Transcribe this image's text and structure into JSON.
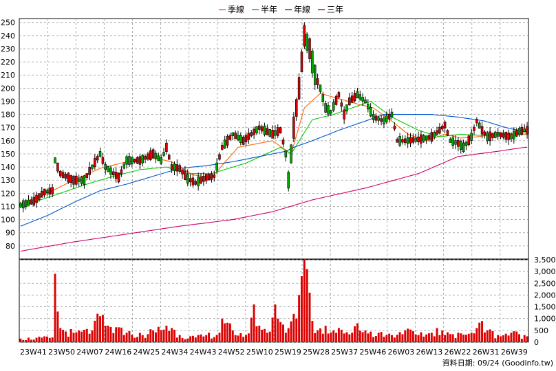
{
  "chart_data": [
    {
      "type": "candlestick",
      "legend": [
        {
          "label": "季線",
          "color": "#ff6600"
        },
        {
          "label": "半年",
          "color": "#00cc00"
        },
        {
          "label": "年線",
          "color": "#0055cc"
        },
        {
          "label": "三年",
          "color": "#cc0066"
        }
      ],
      "ylim": [
        70,
        253
      ],
      "yticks": [
        80,
        90,
        100,
        110,
        120,
        130,
        140,
        150,
        160,
        170,
        180,
        190,
        200,
        210,
        220,
        230,
        240,
        250
      ],
      "xticks": [
        "23W41",
        "23W50",
        "24W07",
        "24W16",
        "24W25",
        "24W34",
        "24W43",
        "24W52",
        "25W10",
        "25W19",
        "25W28",
        "25W37",
        "25W46",
        "26W03",
        "26W13",
        "26W22",
        "26W31",
        "26W39"
      ],
      "price_keypoints": [
        [
          0,
          111
        ],
        [
          5,
          114
        ],
        [
          9,
          121
        ],
        [
          12,
          122
        ],
        [
          13,
          145
        ],
        [
          15,
          135
        ],
        [
          20,
          130
        ],
        [
          24,
          130
        ],
        [
          26,
          137
        ],
        [
          30,
          150
        ],
        [
          32,
          140
        ],
        [
          37,
          132
        ],
        [
          40,
          145
        ],
        [
          45,
          145
        ],
        [
          50,
          150
        ],
        [
          53,
          145
        ],
        [
          55,
          155
        ],
        [
          57,
          140
        ],
        [
          60,
          139
        ],
        [
          63,
          131
        ],
        [
          66,
          128
        ],
        [
          70,
          132
        ],
        [
          73,
          133
        ],
        [
          76,
          155
        ],
        [
          80,
          165
        ],
        [
          84,
          160
        ],
        [
          87,
          165
        ],
        [
          90,
          170
        ],
        [
          95,
          165
        ],
        [
          98,
          168
        ],
        [
          100,
          150
        ],
        [
          101,
          130
        ],
        [
          103,
          170
        ],
        [
          105,
          200
        ],
        [
          107,
          240
        ],
        [
          109,
          230
        ],
        [
          111,
          210
        ],
        [
          113,
          200
        ],
        [
          115,
          185
        ],
        [
          117,
          182
        ],
        [
          120,
          195
        ],
        [
          122,
          180
        ],
        [
          124,
          190
        ],
        [
          127,
          195
        ],
        [
          130,
          190
        ],
        [
          133,
          178
        ],
        [
          137,
          175
        ],
        [
          140,
          180
        ],
        [
          142,
          160
        ],
        [
          145,
          160
        ],
        [
          150,
          161
        ],
        [
          155,
          163
        ],
        [
          158,
          168
        ],
        [
          160,
          172
        ],
        [
          162,
          160
        ],
        [
          165,
          158
        ],
        [
          167,
          155
        ],
        [
          170,
          163
        ],
        [
          172,
          175
        ],
        [
          174,
          168
        ],
        [
          176,
          163
        ],
        [
          180,
          165
        ],
        [
          185,
          163
        ],
        [
          188,
          167
        ],
        [
          190,
          168
        ]
      ],
      "ma_quarter": [
        [
          0,
          111
        ],
        [
          10,
          120
        ],
        [
          20,
          130
        ],
        [
          30,
          139
        ],
        [
          40,
          144
        ],
        [
          50,
          147
        ],
        [
          57,
          144
        ],
        [
          65,
          134
        ],
        [
          72,
          132
        ],
        [
          82,
          155
        ],
        [
          95,
          160
        ],
        [
          102,
          150
        ],
        [
          107,
          185
        ],
        [
          113,
          196
        ],
        [
          120,
          192
        ],
        [
          127,
          188
        ],
        [
          133,
          185
        ],
        [
          140,
          175
        ],
        [
          146,
          165
        ],
        [
          153,
          160
        ],
        [
          160,
          165
        ],
        [
          166,
          162
        ],
        [
          172,
          163
        ],
        [
          180,
          165
        ],
        [
          190,
          165
        ]
      ],
      "ma_halfyear": [
        [
          0,
          110
        ],
        [
          12,
          118
        ],
        [
          25,
          127
        ],
        [
          35,
          133
        ],
        [
          45,
          138
        ],
        [
          55,
          140
        ],
        [
          63,
          135
        ],
        [
          72,
          135
        ],
        [
          85,
          143
        ],
        [
          98,
          155
        ],
        [
          102,
          150
        ],
        [
          110,
          176
        ],
        [
          118,
          180
        ],
        [
          125,
          185
        ],
        [
          132,
          190
        ],
        [
          140,
          178
        ],
        [
          150,
          168
        ],
        [
          158,
          163
        ],
        [
          166,
          165
        ],
        [
          174,
          164
        ],
        [
          182,
          165
        ],
        [
          190,
          166
        ]
      ],
      "ma_year": [
        [
          0,
          95
        ],
        [
          10,
          103
        ],
        [
          20,
          113
        ],
        [
          30,
          122
        ],
        [
          40,
          127
        ],
        [
          50,
          133
        ],
        [
          60,
          139
        ],
        [
          70,
          141
        ],
        [
          80,
          144
        ],
        [
          90,
          148
        ],
        [
          100,
          152
        ],
        [
          103,
          155
        ],
        [
          110,
          160
        ],
        [
          120,
          168
        ],
        [
          130,
          175
        ],
        [
          137,
          180
        ],
        [
          145,
          180
        ],
        [
          155,
          180
        ],
        [
          165,
          178
        ],
        [
          175,
          175
        ],
        [
          183,
          170
        ],
        [
          190,
          167
        ]
      ],
      "ma_3year": [
        [
          0,
          76
        ],
        [
          20,
          83
        ],
        [
          40,
          89
        ],
        [
          60,
          95
        ],
        [
          80,
          100
        ],
        [
          95,
          106
        ],
        [
          110,
          115
        ],
        [
          130,
          124
        ],
        [
          150,
          135
        ],
        [
          165,
          148
        ],
        [
          180,
          152
        ],
        [
          190,
          155
        ]
      ]
    },
    {
      "type": "bar",
      "ylim": [
        0,
        3500
      ],
      "yticks": [
        "0",
        "500",
        "1,000",
        "1,500",
        "2,000",
        "2,500",
        "3,000",
        "3,500"
      ],
      "volume_keypoints": [
        [
          0,
          150
        ],
        [
          12,
          200
        ],
        [
          13,
          2900
        ],
        [
          14,
          1300
        ],
        [
          15,
          600
        ],
        [
          20,
          400
        ],
        [
          27,
          500
        ],
        [
          30,
          1100
        ],
        [
          32,
          700
        ],
        [
          40,
          400
        ],
        [
          46,
          300
        ],
        [
          50,
          500
        ],
        [
          55,
          700
        ],
        [
          57,
          600
        ],
        [
          60,
          300
        ],
        [
          66,
          200
        ],
        [
          70,
          300
        ],
        [
          75,
          400
        ],
        [
          76,
          1000
        ],
        [
          77,
          800
        ],
        [
          80,
          500
        ],
        [
          85,
          300
        ],
        [
          88,
          1600
        ],
        [
          90,
          700
        ],
        [
          93,
          400
        ],
        [
          96,
          1600
        ],
        [
          97,
          1000
        ],
        [
          100,
          400
        ],
        [
          103,
          1200
        ],
        [
          105,
          2000
        ],
        [
          106,
          2800
        ],
        [
          107,
          3500
        ],
        [
          108,
          3100
        ],
        [
          109,
          2100
        ],
        [
          110,
          900
        ],
        [
          112,
          500
        ],
        [
          115,
          700
        ],
        [
          118,
          500
        ],
        [
          120,
          600
        ],
        [
          125,
          400
        ],
        [
          127,
          800
        ],
        [
          130,
          500
        ],
        [
          135,
          400
        ],
        [
          140,
          300
        ],
        [
          145,
          500
        ],
        [
          150,
          300
        ],
        [
          155,
          400
        ],
        [
          157,
          600
        ],
        [
          160,
          300
        ],
        [
          165,
          400
        ],
        [
          170,
          400
        ],
        [
          172,
          600
        ],
        [
          174,
          900
        ],
        [
          176,
          500
        ],
        [
          180,
          300
        ],
        [
          185,
          400
        ],
        [
          190,
          300
        ]
      ]
    }
  ],
  "footer": {
    "credit": "資料日期: 09/24 (Goodinfo.tw)"
  }
}
